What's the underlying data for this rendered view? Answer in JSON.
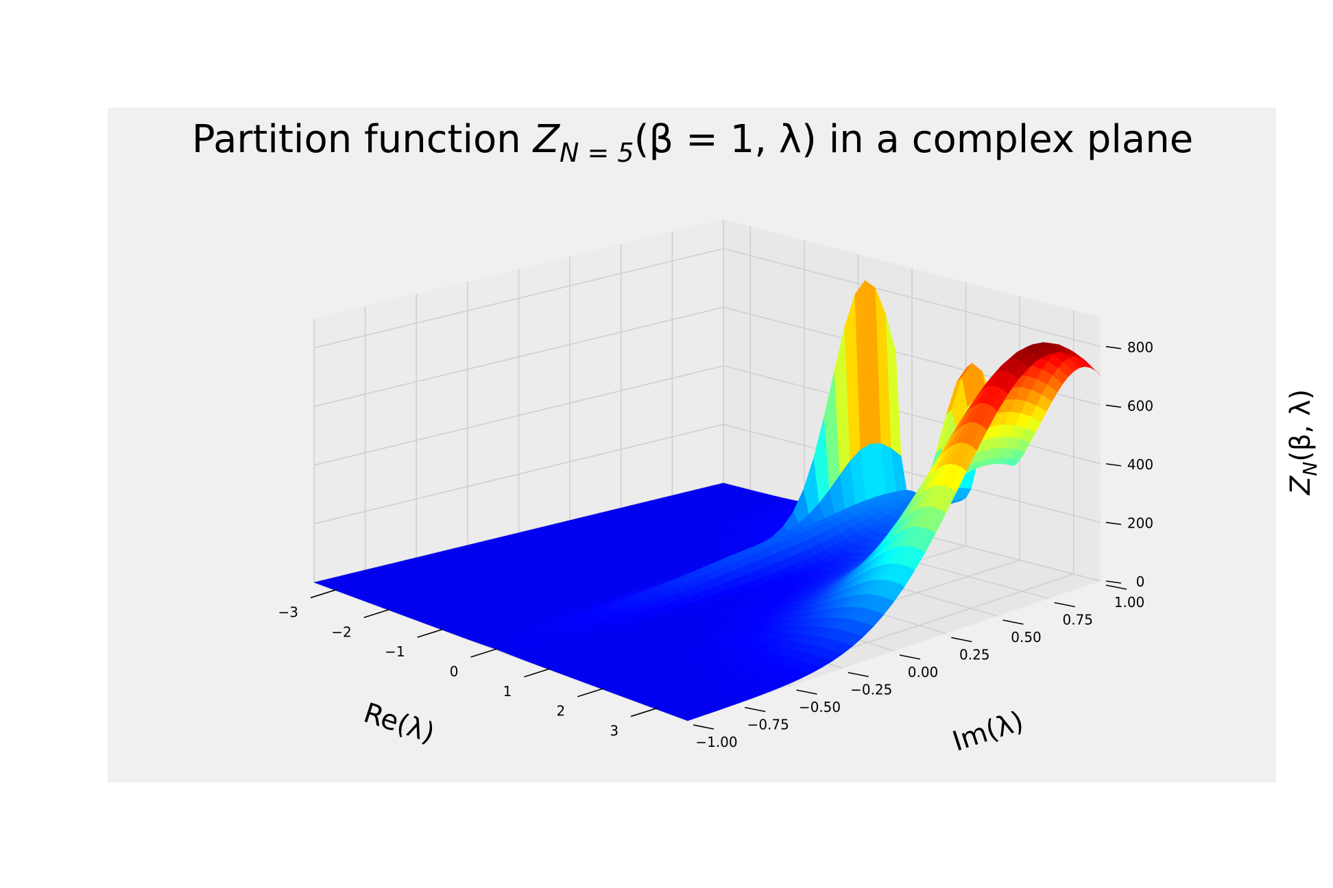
{
  "chart_data": {
    "type": "surface3d",
    "title": {
      "prefix": "Partition function ",
      "main_symbol": "Z",
      "main_subscript": "N = 5",
      "args": "(β = 1, λ)",
      "suffix": " in a complex plane"
    },
    "xlabel": "Re(λ)",
    "ylabel": "Im(λ)",
    "zlabel": {
      "symbol": "Z",
      "subscript": "N",
      "args": "(β, λ)"
    },
    "x_ticks": [
      "−3",
      "−2",
      "−1",
      "0",
      "1",
      "2",
      "3"
    ],
    "y_ticks": [
      "−1.00",
      "−0.75",
      "−0.50",
      "−0.25",
      "0.00",
      "0.25",
      "0.50",
      "0.75",
      "1.00"
    ],
    "z_ticks": [
      "0",
      "200",
      "400",
      "600",
      "800"
    ],
    "xlim": [
      -3.5,
      3.5
    ],
    "ylim": [
      -1.0,
      1.0
    ],
    "zlim": [
      0,
      900
    ],
    "colormap": "jet",
    "grid": true,
    "background": "#f0f0f0",
    "features": [
      {
        "kind": "broad peak",
        "re": 3.3,
        "im": 0.75,
        "z": 850
      },
      {
        "kind": "spike",
        "re": -0.3,
        "im": 0.85,
        "z": 760
      },
      {
        "kind": "secondary peak",
        "re": 1.45,
        "im": 0.9,
        "z": 470
      }
    ]
  }
}
